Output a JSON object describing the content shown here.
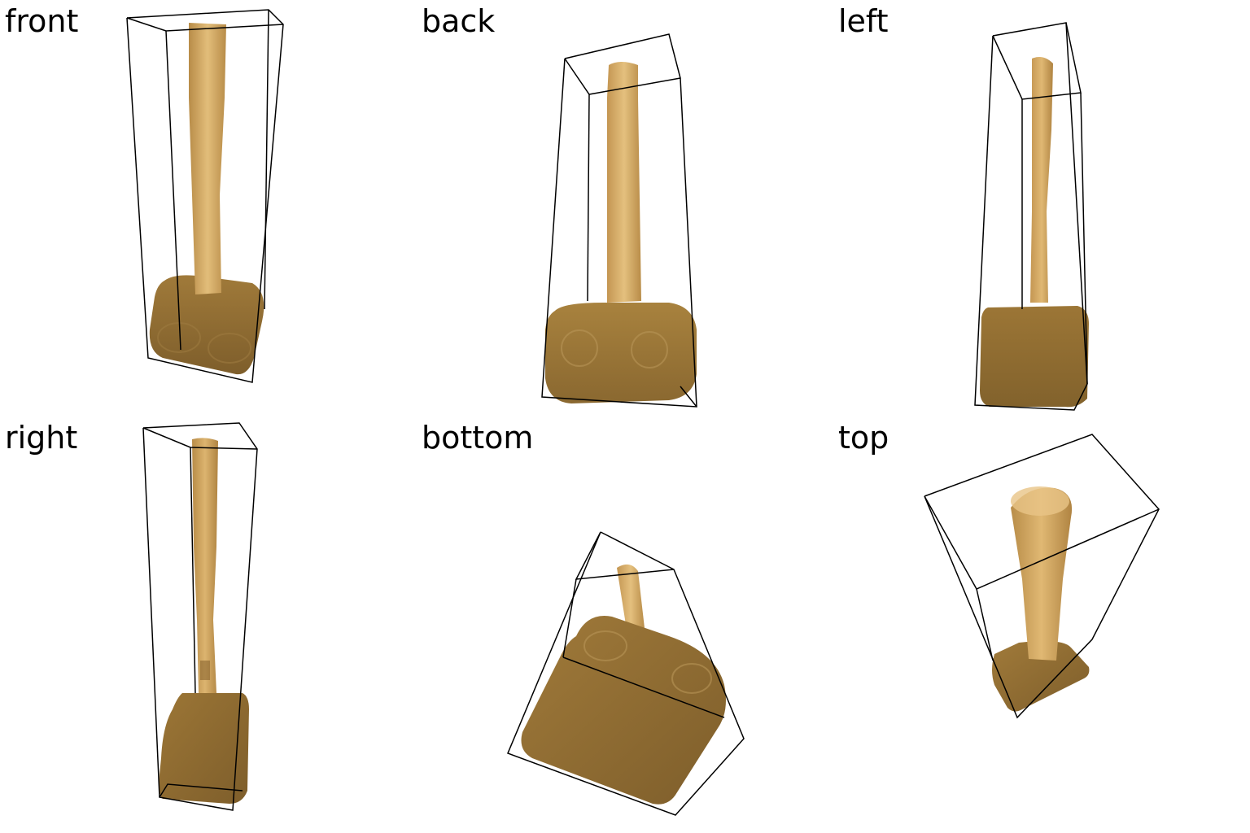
{
  "views": [
    {
      "label": "front"
    },
    {
      "label": "back"
    },
    {
      "label": "left"
    },
    {
      "label": "right"
    },
    {
      "label": "bottom"
    },
    {
      "label": "top"
    }
  ],
  "colors": {
    "background": "#ffffff",
    "box_edge": "#000000",
    "handle_wood": "#d9b06a",
    "handle_shade": "#b88c48",
    "head_wood": "#8c6a32",
    "head_light": "#a07a3a"
  },
  "object": "wooden-mallet"
}
